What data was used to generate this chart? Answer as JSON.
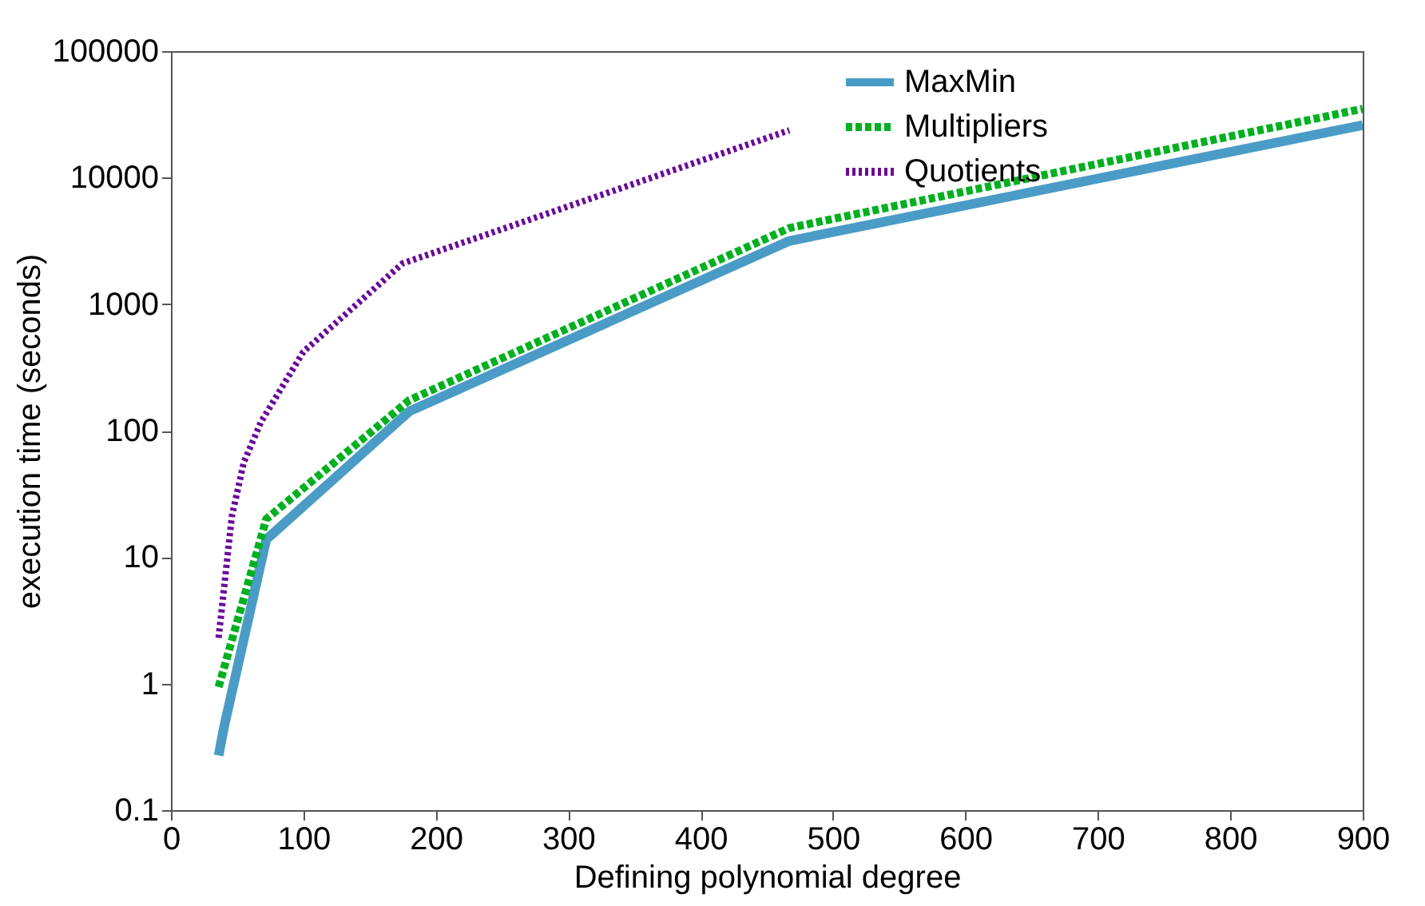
{
  "chart_data": {
    "type": "line",
    "xlabel": "Defining polynomial degree",
    "ylabel": "execution time (seconds)",
    "log": true,
    "xlim": [
      0,
      900
    ],
    "xticks": [
      0,
      100,
      200,
      300,
      400,
      500,
      600,
      700,
      800,
      900
    ],
    "ylim": [
      0.1,
      100000
    ],
    "yticks": [
      0.1,
      1,
      10,
      100,
      1000,
      10000,
      100000
    ],
    "legend": "top right",
    "grid": false,
    "series": [
      {
        "name": "MaxMin",
        "color": "#4a9cc7",
        "line_style": "solid",
        "x": [
          36,
          40,
          72,
          180,
          467,
          900
        ],
        "values": [
          0.27,
          0.45,
          13.8,
          142,
          3160,
          26000
        ]
      },
      {
        "name": "Multipliers",
        "color": "#00b020",
        "line_style": "dashed",
        "x": [
          36,
          72,
          180,
          467,
          900
        ],
        "values": [
          0.94,
          20,
          174,
          4000,
          35000
        ]
      },
      {
        "name": "Quotients",
        "color": "#6a0a9a",
        "line_style": "dotted",
        "x": [
          36,
          46,
          55,
          68,
          100,
          175,
          467
        ],
        "values": [
          2.3,
          21,
          56,
          117,
          420,
          2100,
          23700
        ]
      }
    ]
  }
}
